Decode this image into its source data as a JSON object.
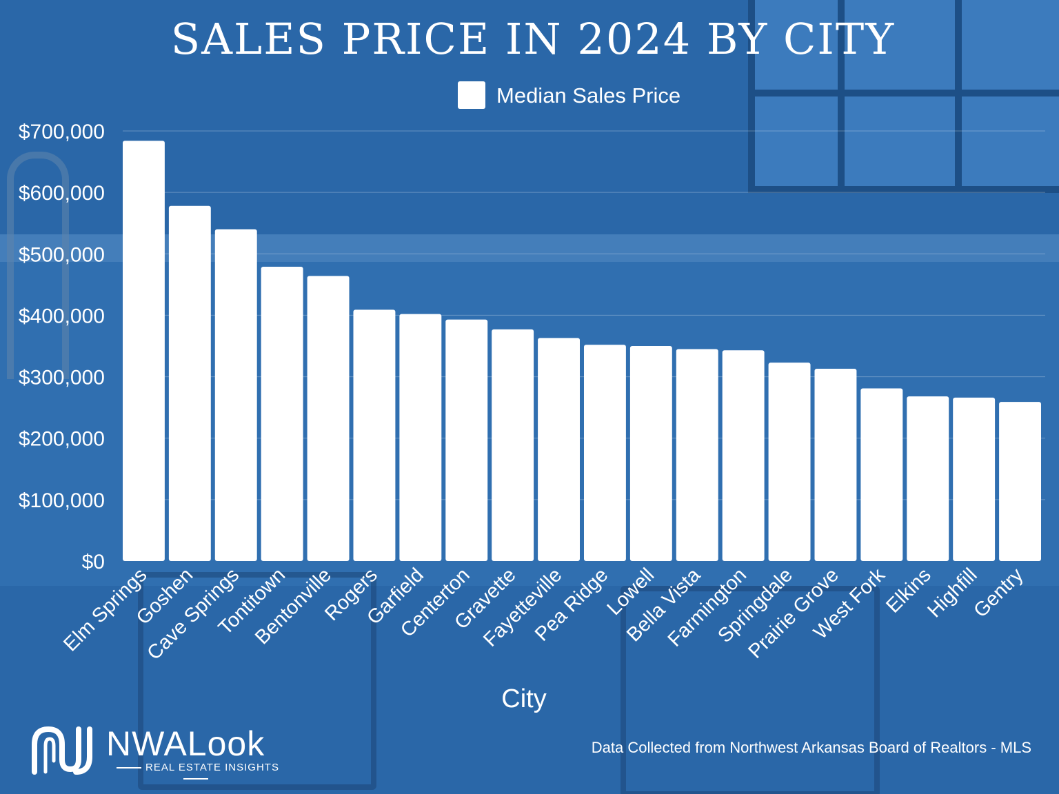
{
  "chart_data": {
    "type": "bar",
    "title": "SALES PRICE IN 2024 BY CITY",
    "xlabel": "City",
    "ylabel": "",
    "legend": {
      "position": "top-center",
      "entries": [
        "Median Sales Price"
      ]
    },
    "grid": true,
    "ylim": [
      0,
      700000
    ],
    "y_ticks": [
      {
        "value": 0,
        "label": "$0"
      },
      {
        "value": 100000,
        "label": "$100,000"
      },
      {
        "value": 200000,
        "label": "$200,000"
      },
      {
        "value": 300000,
        "label": "$300,000"
      },
      {
        "value": 400000,
        "label": "$400,000"
      },
      {
        "value": 500000,
        "label": "$500,000"
      },
      {
        "value": 600000,
        "label": "$600,000"
      },
      {
        "value": 700000,
        "label": "$700,000"
      }
    ],
    "categories": [
      "Elm Springs",
      "Goshen",
      "Cave Springs",
      "Tontitown",
      "Bentonville",
      "Rogers",
      "Garfield",
      "Centerton",
      "Gravette",
      "Fayetteville",
      "Pea Ridge",
      "Lowell",
      "Bella Vista",
      "Farmington",
      "Springdale",
      "Prairie Grove",
      "West Fork",
      "Elkins",
      "Highfill",
      "Gentry"
    ],
    "series": [
      {
        "name": "Median Sales Price",
        "color": "#ffffff",
        "values": [
          684000,
          578000,
          540000,
          479000,
          464000,
          409000,
          402000,
          393000,
          377000,
          363000,
          352000,
          350000,
          345000,
          343000,
          323000,
          313000,
          281000,
          268000,
          266000,
          259000
        ]
      }
    ]
  },
  "colors": {
    "background": "#2a67a8",
    "bar": "#ffffff",
    "text": "#ffffff"
  },
  "branding": {
    "logo_name": "NWALook",
    "logo_tagline": "REAL ESTATE INSIGHTS"
  },
  "footer": {
    "source": "Data Collected from Northwest Arkansas Board of Realtors - MLS"
  }
}
